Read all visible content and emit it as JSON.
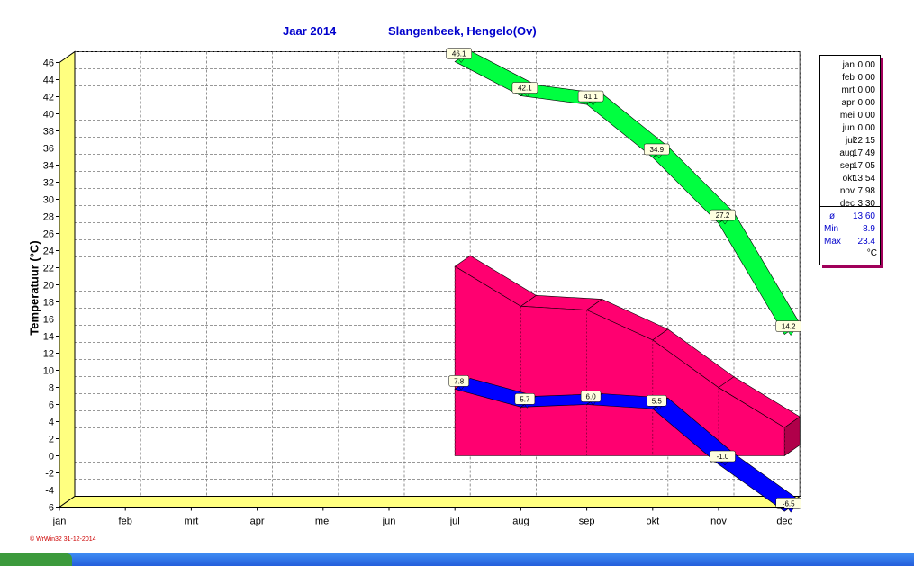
{
  "header": {
    "title_year": "Jaar 2014",
    "title_station": "Slangenbeek, Hengelo(Ov)"
  },
  "footer": {
    "note": "© WrWin32  31-12-2014"
  },
  "legend": {
    "months": [
      {
        "m": "jan",
        "v": "0.00"
      },
      {
        "m": "feb",
        "v": "0.00"
      },
      {
        "m": "mrt",
        "v": "0.00"
      },
      {
        "m": "apr",
        "v": "0.00"
      },
      {
        "m": "mei",
        "v": "0.00"
      },
      {
        "m": "jun",
        "v": "0.00"
      },
      {
        "m": "jul",
        "v": "22.15"
      },
      {
        "m": "aug",
        "v": "17.49"
      },
      {
        "m": "sep",
        "v": "17.05"
      },
      {
        "m": "okt",
        "v": "13.54"
      },
      {
        "m": "nov",
        "v": "7.98"
      },
      {
        "m": "dec",
        "v": "3.30"
      }
    ],
    "stats": {
      "avg_label": "ø",
      "avg": "13.60",
      "min_label": "Min",
      "min": "8.9",
      "max_label": "Max",
      "max": "23.4",
      "unit": "°C"
    }
  },
  "colors": {
    "max_band": "#00ff40",
    "mean_area": "#ff0070",
    "min_band": "#0000ff",
    "floor": "#ffff80",
    "title": "#0000cc"
  },
  "chart_data": {
    "type": "line",
    "ylabel": "Temperatuur  (°C)",
    "categories": [
      "jan",
      "feb",
      "mrt",
      "apr",
      "mei",
      "jun",
      "jul",
      "aug",
      "sep",
      "okt",
      "nov",
      "dec"
    ],
    "ylim": [
      -6,
      46
    ],
    "yticks": [
      -6,
      -4,
      -2,
      0,
      2,
      4,
      6,
      8,
      10,
      12,
      14,
      16,
      18,
      20,
      22,
      24,
      26,
      28,
      30,
      32,
      34,
      36,
      38,
      40,
      42,
      44,
      46
    ],
    "grid": true,
    "series": [
      {
        "type": "area",
        "values": [
          null,
          null,
          null,
          null,
          null,
          null,
          22.15,
          17.49,
          17.05,
          13.54,
          7.98,
          3.3
        ]
      },
      {
        "type": "line",
        "values": [
          null,
          null,
          null,
          null,
          null,
          null,
          46.1,
          42.1,
          41.1,
          34.9,
          27.2,
          14.2
        ],
        "labels": [
          null,
          null,
          null,
          null,
          null,
          null,
          "46.1",
          "42.1",
          "41.1",
          "34.9",
          "27.2",
          "14.2"
        ]
      },
      {
        "type": "line",
        "values": [
          null,
          null,
          null,
          null,
          null,
          null,
          7.8,
          5.7,
          6.0,
          5.5,
          -1.0,
          -6.5
        ],
        "labels": [
          null,
          null,
          null,
          null,
          null,
          null,
          "7.8",
          "5.7",
          "6.0",
          "5.5",
          "-1.0",
          "-6.5"
        ]
      }
    ]
  }
}
